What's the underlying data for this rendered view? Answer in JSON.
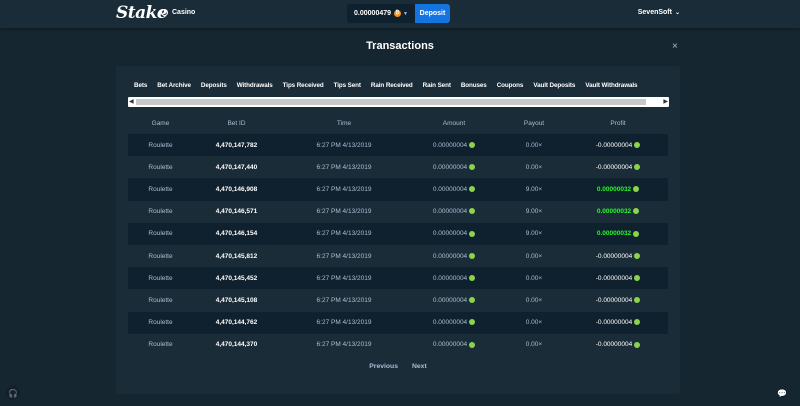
{
  "header": {
    "logo": "Stake",
    "nav_casino": "Casino",
    "balance": "0.00000479",
    "currency_icon": "bitcoin-icon",
    "deposit_label": "Deposit",
    "username": "SevenSoft"
  },
  "modal": {
    "title": "Transactions",
    "close_icon": "close-icon"
  },
  "tabs": [
    "Bets",
    "Bet Archive",
    "Deposits",
    "Withdrawals",
    "Tips Received",
    "Tips Sent",
    "Rain Received",
    "Rain Sent",
    "Bonuses",
    "Coupons",
    "Vault Deposits",
    "Vault Withdrawals"
  ],
  "table": {
    "columns": [
      "Game",
      "Bet ID",
      "Time",
      "Amount",
      "Payout",
      "Profit"
    ],
    "rows": [
      {
        "game": "Roulette",
        "bet_id": "4,470,147,782",
        "time": "6:27 PM 4/13/2019",
        "amount": "0.00000004",
        "payout": "0.00×",
        "profit": "-0.00000004",
        "win": false
      },
      {
        "game": "Roulette",
        "bet_id": "4,470,147,440",
        "time": "6:27 PM 4/13/2019",
        "amount": "0.00000004",
        "payout": "0.00×",
        "profit": "-0.00000004",
        "win": false
      },
      {
        "game": "Roulette",
        "bet_id": "4,470,146,908",
        "time": "6:27 PM 4/13/2019",
        "amount": "0.00000004",
        "payout": "9.00×",
        "profit": "0.00000032",
        "win": true
      },
      {
        "game": "Roulette",
        "bet_id": "4,470,146,571",
        "time": "6:27 PM 4/13/2019",
        "amount": "0.00000004",
        "payout": "9.00×",
        "profit": "0.00000032",
        "win": true
      },
      {
        "game": "Roulette",
        "bet_id": "4,470,146,154",
        "time": "6:27 PM 4/13/2019",
        "amount": "0.00000004",
        "payout": "9.00×",
        "profit": "0.00000032",
        "win": true
      },
      {
        "game": "Roulette",
        "bet_id": "4,470,145,812",
        "time": "6:27 PM 4/13/2019",
        "amount": "0.00000004",
        "payout": "0.00×",
        "profit": "-0.00000004",
        "win": false
      },
      {
        "game": "Roulette",
        "bet_id": "4,470,145,452",
        "time": "6:27 PM 4/13/2019",
        "amount": "0.00000004",
        "payout": "0.00×",
        "profit": "-0.00000004",
        "win": false
      },
      {
        "game": "Roulette",
        "bet_id": "4,470,145,108",
        "time": "6:27 PM 4/13/2019",
        "amount": "0.00000004",
        "payout": "0.00×",
        "profit": "-0.00000004",
        "win": false
      },
      {
        "game": "Roulette",
        "bet_id": "4,470,144,762",
        "time": "6:27 PM 4/13/2019",
        "amount": "0.00000004",
        "payout": "0.00×",
        "profit": "-0.00000004",
        "win": false
      },
      {
        "game": "Roulette",
        "bet_id": "4,470,144,370",
        "time": "6:27 PM 4/13/2019",
        "amount": "0.00000004",
        "payout": "0.00×",
        "profit": "-0.00000004",
        "win": false
      }
    ]
  },
  "pagination": {
    "previous": "Previous",
    "next": "Next"
  },
  "colors": {
    "background": "#152631",
    "panel": "#1a2c38",
    "accent": "#1475e1",
    "win": "#1fff20"
  }
}
